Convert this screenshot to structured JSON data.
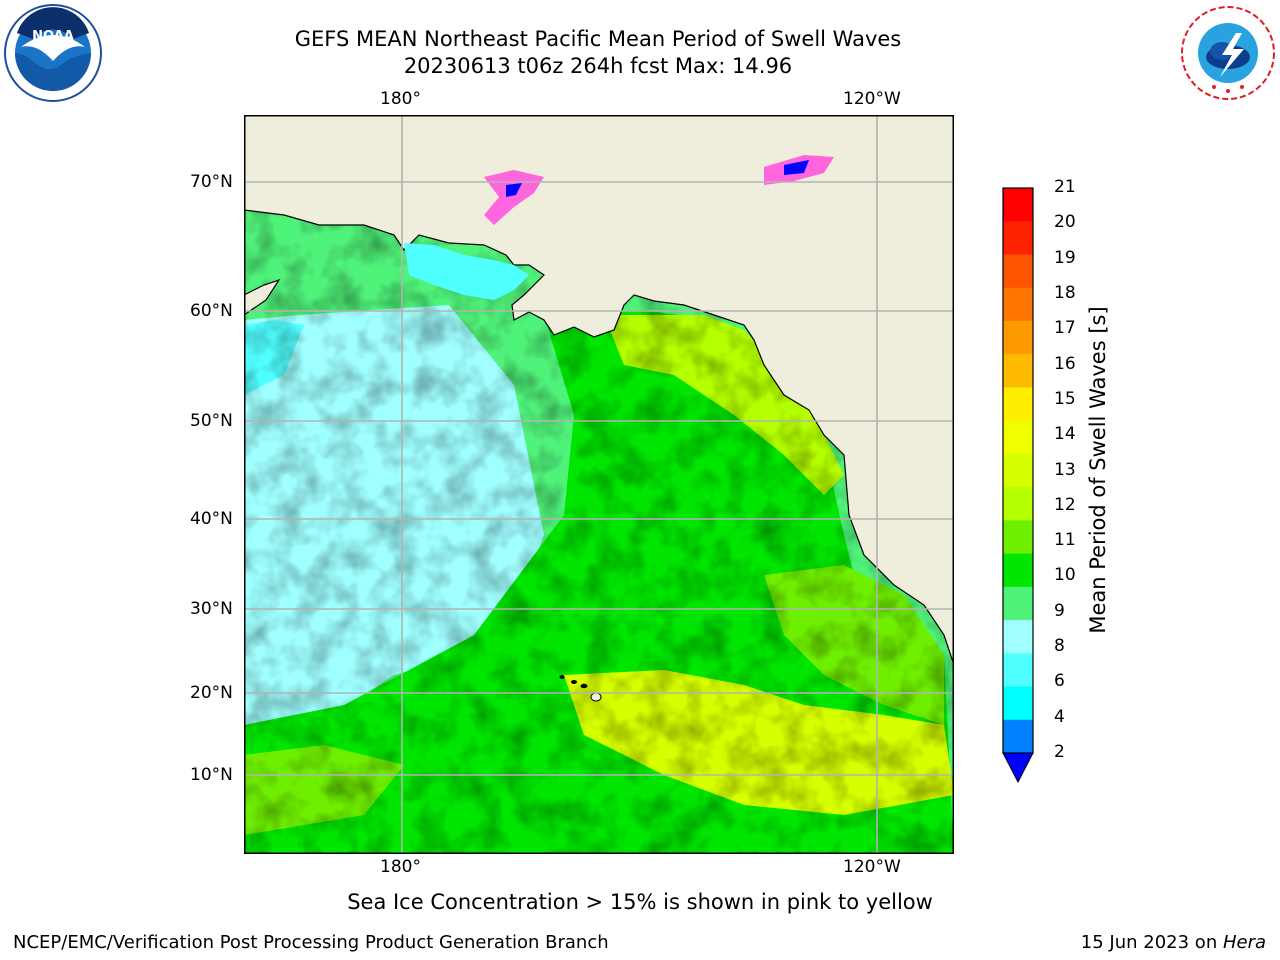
{
  "header": {
    "title_line1": "GEFS MEAN Northeast Pacific Mean Period of Swell Waves",
    "title_line2": "20230613 t06z 264h fcst   Max: 14.96"
  },
  "logos": {
    "left": "NOAA",
    "left_ring_text": "NATIONAL OCEANIC AND ATMOSPHERIC ADMINISTRATION · U.S. DEPARTMENT OF COMMERCE",
    "right_ring_text": "NATIONAL WEATHER SERVICE"
  },
  "map": {
    "lon_labels_top": [
      "180°",
      "120°W"
    ],
    "lon_labels_bottom": [
      "180°",
      "120°W"
    ],
    "lat_labels": [
      "70°N",
      "60°N",
      "50°N",
      "40°N",
      "30°N",
      "20°N",
      "10°N"
    ],
    "colors": {
      "land": "#efeedc",
      "grid": "#b3b3b3"
    }
  },
  "colorbar": {
    "label": "Mean Period of Swell Waves [s]",
    "ticks": [
      "21",
      "20",
      "19",
      "18",
      "17",
      "16",
      "15",
      "14",
      "13",
      "12",
      "11",
      "10",
      "9",
      "8",
      "6",
      "4",
      "2"
    ],
    "colors": [
      "#ff0000",
      "#ff2200",
      "#ff5500",
      "#ff7700",
      "#ff9900",
      "#ffbb00",
      "#ffee00",
      "#f0ff00",
      "#d6ff00",
      "#b4ff00",
      "#6fef00",
      "#00e600",
      "#50f37a",
      "#a0ffff",
      "#50ffff",
      "#00ffff",
      "#0080ff"
    ],
    "extend_color": "#0000ff"
  },
  "note": "Sea Ice Concentration > 15% is shown in pink to yellow",
  "footer": {
    "left": "NCEP/EMC/Verification Post Processing Product Generation Branch",
    "right_date": "15 Jun 2023 on ",
    "right_machine": "Hera"
  }
}
